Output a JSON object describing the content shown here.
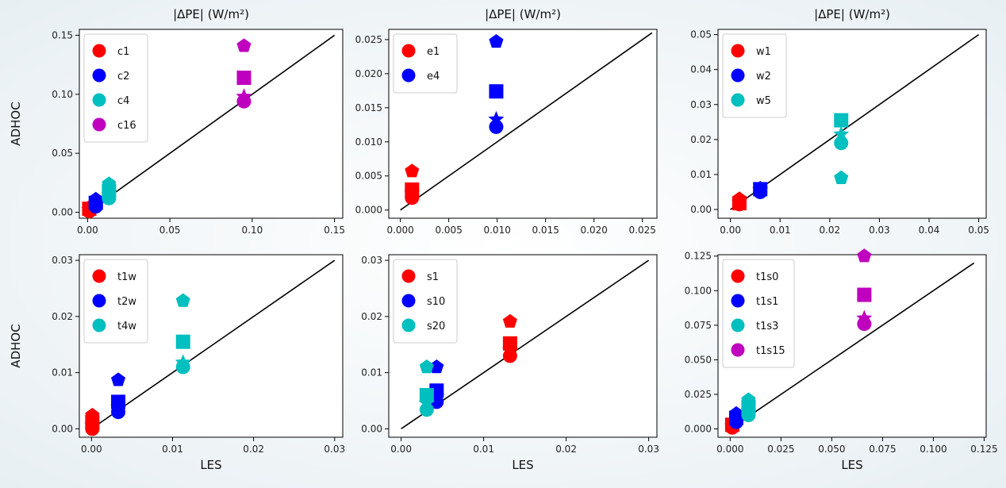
{
  "chart_data": [
    {
      "type": "scatter",
      "title": "|ΔPE| (W/m²)",
      "ylabel": "ADHOC",
      "xlabel": "",
      "xlim": [
        -0.005,
        0.155
      ],
      "ylim": [
        -0.005,
        0.155
      ],
      "xticks": [
        "0.00",
        "0.05",
        "0.10",
        "0.15"
      ],
      "yticks": [
        "0.00",
        "0.05",
        "0.10",
        "0.15"
      ],
      "xtick_values": [
        0,
        0.05,
        0.1,
        0.15
      ],
      "ytick_values": [
        0,
        0.05,
        0.1,
        0.15
      ],
      "reference_line": [
        [
          0,
          0
        ],
        [
          0.15,
          0.15
        ]
      ],
      "legend": "top-left",
      "series": [
        {
          "name": "c1",
          "color": "#ff0000",
          "points": [
            {
              "x": 0.001,
              "y": 0.001,
              "m": "circle"
            },
            {
              "x": 0.001,
              "y": 0.003,
              "m": "square"
            },
            {
              "x": 0.001,
              "y": 0.002,
              "m": "star"
            },
            {
              "x": 0.001,
              "y": 0.004,
              "m": "pentagon"
            }
          ]
        },
        {
          "name": "c2",
          "color": "#0000ff",
          "points": [
            {
              "x": 0.005,
              "y": 0.005,
              "m": "circle"
            },
            {
              "x": 0.005,
              "y": 0.008,
              "m": "square"
            },
            {
              "x": 0.005,
              "y": 0.006,
              "m": "star"
            },
            {
              "x": 0.005,
              "y": 0.011,
              "m": "pentagon"
            }
          ]
        },
        {
          "name": "c4",
          "color": "#00bfbf",
          "points": [
            {
              "x": 0.013,
              "y": 0.012,
              "m": "circle"
            },
            {
              "x": 0.013,
              "y": 0.018,
              "m": "square"
            },
            {
              "x": 0.013,
              "y": 0.015,
              "m": "star"
            },
            {
              "x": 0.013,
              "y": 0.024,
              "m": "pentagon"
            }
          ]
        },
        {
          "name": "c16",
          "color": "#bf00bf",
          "points": [
            {
              "x": 0.095,
              "y": 0.094,
              "m": "circle"
            },
            {
              "x": 0.095,
              "y": 0.114,
              "m": "square"
            },
            {
              "x": 0.095,
              "y": 0.098,
              "m": "star"
            },
            {
              "x": 0.095,
              "y": 0.141,
              "m": "pentagon"
            }
          ]
        }
      ]
    },
    {
      "type": "scatter",
      "title": "|ΔPE| (W/m²)",
      "ylabel": "",
      "xlabel": "",
      "xlim": [
        -0.0012,
        0.0265
      ],
      "ylim": [
        -0.0012,
        0.0265
      ],
      "xticks": [
        "0.000",
        "0.005",
        "0.010",
        "0.015",
        "0.020",
        "0.025"
      ],
      "yticks": [
        "0.000",
        "0.005",
        "0.010",
        "0.015",
        "0.020",
        "0.025"
      ],
      "xtick_values": [
        0,
        0.005,
        0.01,
        0.015,
        0.02,
        0.025
      ],
      "ytick_values": [
        0,
        0.005,
        0.01,
        0.015,
        0.02,
        0.025
      ],
      "reference_line": [
        [
          0,
          0
        ],
        [
          0.026,
          0.026
        ]
      ],
      "legend": "top-left",
      "series": [
        {
          "name": "e1",
          "color": "#ff0000",
          "points": [
            {
              "x": 0.0012,
              "y": 0.0018,
              "m": "circle"
            },
            {
              "x": 0.0012,
              "y": 0.003,
              "m": "square"
            },
            {
              "x": 0.0012,
              "y": 0.0025,
              "m": "star"
            },
            {
              "x": 0.0012,
              "y": 0.0057,
              "m": "pentagon"
            }
          ]
        },
        {
          "name": "e4",
          "color": "#0000ff",
          "points": [
            {
              "x": 0.0099,
              "y": 0.0122,
              "m": "circle"
            },
            {
              "x": 0.0099,
              "y": 0.0174,
              "m": "square"
            },
            {
              "x": 0.0099,
              "y": 0.0133,
              "m": "star"
            },
            {
              "x": 0.0099,
              "y": 0.0247,
              "m": "pentagon"
            }
          ]
        }
      ]
    },
    {
      "type": "scatter",
      "title": "|ΔPE| (W/m²)",
      "ylabel": "",
      "xlabel": "",
      "xlim": [
        -0.0025,
        0.0515
      ],
      "ylim": [
        -0.0025,
        0.0515
      ],
      "xticks": [
        "0.00",
        "0.01",
        "0.02",
        "0.03",
        "0.04",
        "0.05"
      ],
      "yticks": [
        "0.00",
        "0.01",
        "0.02",
        "0.03",
        "0.04",
        "0.05"
      ],
      "xtick_values": [
        0,
        0.01,
        0.02,
        0.03,
        0.04,
        0.05
      ],
      "ytick_values": [
        0,
        0.01,
        0.02,
        0.03,
        0.04,
        0.05
      ],
      "reference_line": [
        [
          0,
          0
        ],
        [
          0.05,
          0.05
        ]
      ],
      "legend": "top-left",
      "series": [
        {
          "name": "w1",
          "color": "#ff0000",
          "points": [
            {
              "x": 0.0018,
              "y": 0.0015,
              "m": "circle"
            },
            {
              "x": 0.0018,
              "y": 0.0018,
              "m": "square"
            },
            {
              "x": 0.0018,
              "y": 0.002,
              "m": "star"
            },
            {
              "x": 0.0018,
              "y": 0.003,
              "m": "pentagon"
            }
          ]
        },
        {
          "name": "w2",
          "color": "#0000ff",
          "points": [
            {
              "x": 0.006,
              "y": 0.005,
              "m": "circle"
            },
            {
              "x": 0.006,
              "y": 0.0058,
              "m": "square"
            },
            {
              "x": 0.006,
              "y": 0.0055,
              "m": "star"
            },
            {
              "x": 0.006,
              "y": 0.006,
              "m": "pentagon"
            }
          ]
        },
        {
          "name": "w5",
          "color": "#00bfbf",
          "points": [
            {
              "x": 0.0223,
              "y": 0.019,
              "m": "circle"
            },
            {
              "x": 0.0223,
              "y": 0.0255,
              "m": "square"
            },
            {
              "x": 0.0223,
              "y": 0.0215,
              "m": "star"
            },
            {
              "x": 0.0223,
              "y": 0.009,
              "m": "pentagon"
            }
          ]
        }
      ]
    },
    {
      "type": "scatter",
      "title": "",
      "ylabel": "ADHOC",
      "xlabel": "LES",
      "xlim": [
        -0.0015,
        0.031
      ],
      "ylim": [
        -0.0015,
        0.031
      ],
      "xticks": [
        "0.00",
        "0.01",
        "0.02",
        "0.03"
      ],
      "yticks": [
        "0.00",
        "0.01",
        "0.02",
        "0.03"
      ],
      "xtick_values": [
        0,
        0.01,
        0.02,
        0.03
      ],
      "ytick_values": [
        0,
        0.01,
        0.02,
        0.03
      ],
      "reference_line": [
        [
          0,
          0
        ],
        [
          0.03,
          0.03
        ]
      ],
      "legend": "top-left",
      "series": [
        {
          "name": "t1w",
          "color": "#ff0000",
          "points": [
            {
              "x": 0.0001,
              "y": 0.0,
              "m": "circle"
            },
            {
              "x": 0.0001,
              "y": 0.0012,
              "m": "square"
            },
            {
              "x": 0.0001,
              "y": 0.0006,
              "m": "star"
            },
            {
              "x": 0.0001,
              "y": 0.0024,
              "m": "pentagon"
            }
          ]
        },
        {
          "name": "t2w",
          "color": "#0000ff",
          "points": [
            {
              "x": 0.0033,
              "y": 0.003,
              "m": "circle"
            },
            {
              "x": 0.0033,
              "y": 0.0048,
              "m": "square"
            },
            {
              "x": 0.0033,
              "y": 0.0038,
              "m": "star"
            },
            {
              "x": 0.0033,
              "y": 0.0087,
              "m": "pentagon"
            }
          ]
        },
        {
          "name": "t4w",
          "color": "#00bfbf",
          "points": [
            {
              "x": 0.0113,
              "y": 0.011,
              "m": "circle"
            },
            {
              "x": 0.0113,
              "y": 0.0155,
              "m": "square"
            },
            {
              "x": 0.0113,
              "y": 0.0118,
              "m": "star"
            },
            {
              "x": 0.0113,
              "y": 0.0228,
              "m": "pentagon"
            }
          ]
        }
      ]
    },
    {
      "type": "scatter",
      "title": "",
      "ylabel": "",
      "xlabel": "LES",
      "xlim": [
        -0.0015,
        0.031
      ],
      "ylim": [
        -0.0015,
        0.031
      ],
      "xticks": [
        "0.00",
        "0.01",
        "0.02",
        "0.03"
      ],
      "yticks": [
        "0.00",
        "0.01",
        "0.02",
        "0.03"
      ],
      "xtick_values": [
        0,
        0.01,
        0.02,
        0.03
      ],
      "ytick_values": [
        0,
        0.01,
        0.02,
        0.03
      ],
      "reference_line": [
        [
          0,
          0
        ],
        [
          0.03,
          0.03
        ]
      ],
      "legend": "top-left",
      "series": [
        {
          "name": "s1",
          "color": "#ff0000",
          "points": [
            {
              "x": 0.0132,
              "y": 0.013,
              "m": "circle"
            },
            {
              "x": 0.0132,
              "y": 0.0152,
              "m": "square"
            },
            {
              "x": 0.0132,
              "y": 0.014,
              "m": "star"
            },
            {
              "x": 0.0132,
              "y": 0.0191,
              "m": "pentagon"
            }
          ]
        },
        {
          "name": "s10",
          "color": "#0000ff",
          "points": [
            {
              "x": 0.0043,
              "y": 0.0048,
              "m": "circle"
            },
            {
              "x": 0.0043,
              "y": 0.0068,
              "m": "square"
            },
            {
              "x": 0.0043,
              "y": 0.0058,
              "m": "star"
            },
            {
              "x": 0.0043,
              "y": 0.011,
              "m": "pentagon"
            }
          ]
        },
        {
          "name": "s20",
          "color": "#00bfbf",
          "points": [
            {
              "x": 0.0031,
              "y": 0.0034,
              "m": "circle"
            },
            {
              "x": 0.0031,
              "y": 0.006,
              "m": "square"
            },
            {
              "x": 0.0031,
              "y": 0.0045,
              "m": "star"
            },
            {
              "x": 0.0031,
              "y": 0.011,
              "m": "pentagon"
            }
          ]
        }
      ]
    },
    {
      "type": "scatter",
      "title": "",
      "ylabel": "",
      "xlabel": "LES",
      "xlim": [
        -0.006,
        0.126
      ],
      "ylim": [
        -0.006,
        0.126
      ],
      "xticks": [
        "0.000",
        "0.025",
        "0.050",
        "0.075",
        "0.100",
        "0.125"
      ],
      "yticks": [
        "0.000",
        "0.025",
        "0.050",
        "0.075",
        "0.100",
        "0.125"
      ],
      "xtick_values": [
        0,
        0.025,
        0.05,
        0.075,
        0.1,
        0.125
      ],
      "ytick_values": [
        0,
        0.025,
        0.05,
        0.075,
        0.1,
        0.125
      ],
      "reference_line": [
        [
          0,
          0
        ],
        [
          0.12,
          0.12
        ]
      ],
      "legend": "top-left",
      "series": [
        {
          "name": "t1s0",
          "color": "#ff0000",
          "points": [
            {
              "x": 0.001,
              "y": 0.001,
              "m": "circle"
            },
            {
              "x": 0.001,
              "y": 0.003,
              "m": "square"
            },
            {
              "x": 0.001,
              "y": 0.002,
              "m": "star"
            },
            {
              "x": 0.001,
              "y": 0.004,
              "m": "pentagon"
            }
          ]
        },
        {
          "name": "t1s1",
          "color": "#0000ff",
          "points": [
            {
              "x": 0.003,
              "y": 0.005,
              "m": "circle"
            },
            {
              "x": 0.003,
              "y": 0.008,
              "m": "square"
            },
            {
              "x": 0.003,
              "y": 0.006,
              "m": "star"
            },
            {
              "x": 0.003,
              "y": 0.011,
              "m": "pentagon"
            }
          ]
        },
        {
          "name": "t1s3",
          "color": "#00bfbf",
          "points": [
            {
              "x": 0.009,
              "y": 0.01,
              "m": "circle"
            },
            {
              "x": 0.009,
              "y": 0.016,
              "m": "square"
            },
            {
              "x": 0.009,
              "y": 0.013,
              "m": "star"
            },
            {
              "x": 0.009,
              "y": 0.021,
              "m": "pentagon"
            }
          ]
        },
        {
          "name": "t1s15",
          "color": "#bf00bf",
          "points": [
            {
              "x": 0.066,
              "y": 0.076,
              "m": "circle"
            },
            {
              "x": 0.066,
              "y": 0.097,
              "m": "square"
            },
            {
              "x": 0.066,
              "y": 0.08,
              "m": "star"
            },
            {
              "x": 0.066,
              "y": 0.125,
              "m": "pentagon"
            }
          ]
        }
      ]
    }
  ]
}
